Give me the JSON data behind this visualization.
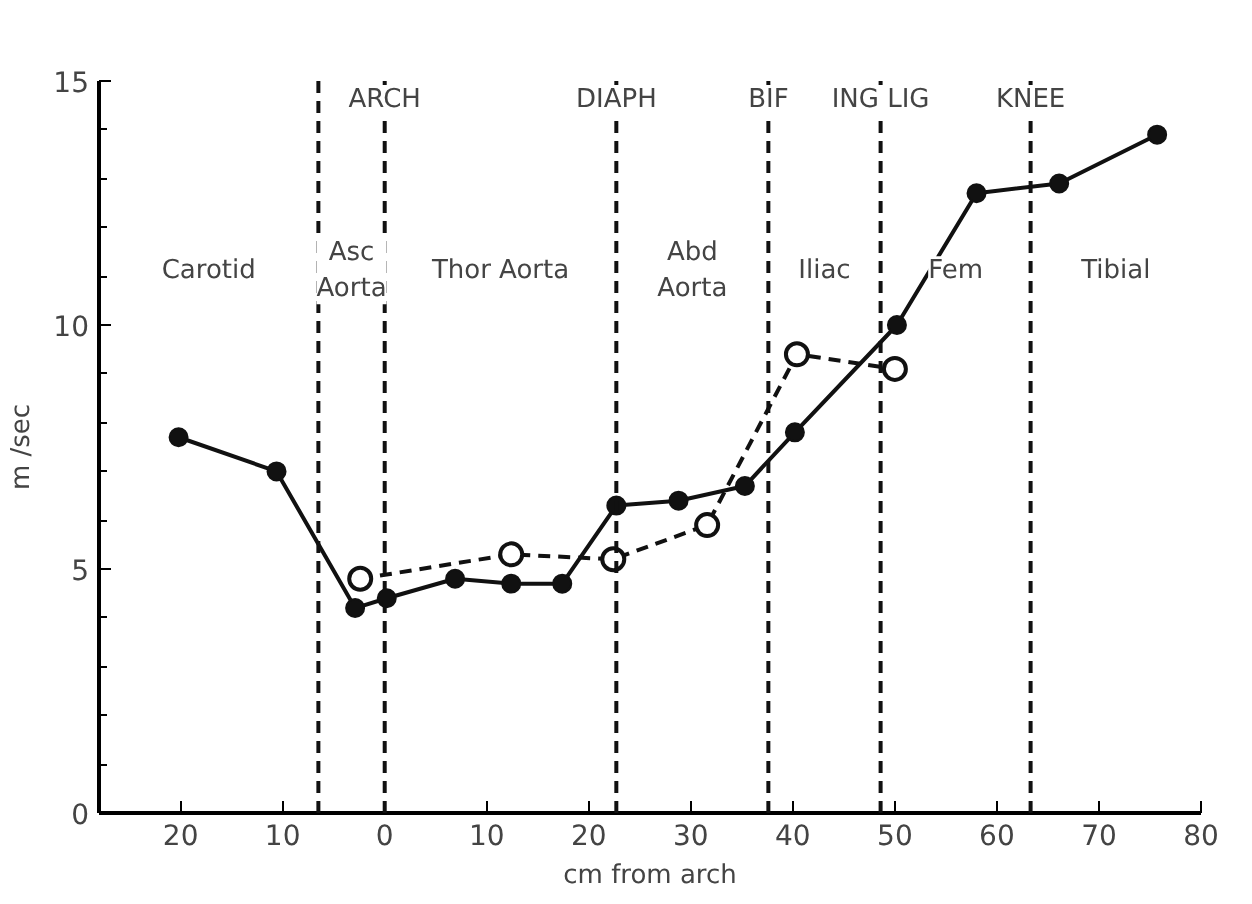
{
  "chart_data": {
    "type": "line",
    "xlabel": "cm from arch",
    "ylabel": "m /sec",
    "xlim": [
      -28,
      80
    ],
    "ylim": [
      0,
      15
    ],
    "xticks": [
      {
        "value": -20,
        "label": "20"
      },
      {
        "value": -10,
        "label": "10"
      },
      0,
      10,
      20,
      30,
      40,
      50,
      60,
      70,
      80
    ],
    "yticks": [
      0,
      5,
      10,
      15
    ],
    "grid": false,
    "series": [
      {
        "color": "#111111",
        "marker": "circle",
        "line_style": "solid",
        "x": [
          -20.2,
          -10.6,
          -2.9,
          0.2,
          6.9,
          12.4,
          17.4,
          22.7,
          28.8,
          35.3,
          40.2,
          50.2,
          58.0,
          66.1,
          75.7
        ],
        "values": [
          7.7,
          7.0,
          4.2,
          4.4,
          4.8,
          4.7,
          4.7,
          6.3,
          6.4,
          6.7,
          7.8,
          10.0,
          12.7,
          12.9,
          13.9
        ]
      },
      {
        "color": "#111111",
        "marker": "open circle",
        "line_style": "dashed",
        "x": [
          -2.4,
          12.4,
          22.4,
          31.6,
          40.4,
          50.0
        ],
        "values": [
          4.8,
          5.3,
          5.2,
          5.9,
          9.4,
          9.1
        ]
      }
    ],
    "ref_lines": [
      {
        "axis": "x",
        "value": -6.5,
        "label": null,
        "line_style": "dashed"
      },
      {
        "axis": "x",
        "value": 0,
        "label": "ARCH",
        "line_style": "dashed"
      },
      {
        "axis": "x",
        "value": 22.7,
        "label": "DIAPH",
        "line_style": "dashed"
      },
      {
        "axis": "x",
        "value": 37.6,
        "label": "BIF",
        "line_style": "dashed"
      },
      {
        "axis": "x",
        "value": 48.6,
        "label": "ING LIG",
        "line_style": "dashed"
      },
      {
        "axis": "x",
        "value": 63.3,
        "label": "KNEE",
        "line_style": "dashed"
      }
    ],
    "annotations": [
      "Carotid",
      "Asc\nAorta",
      "Thor Aorta",
      "Abd\nAorta",
      "Iliac",
      "Fem",
      "Tibial"
    ]
  }
}
